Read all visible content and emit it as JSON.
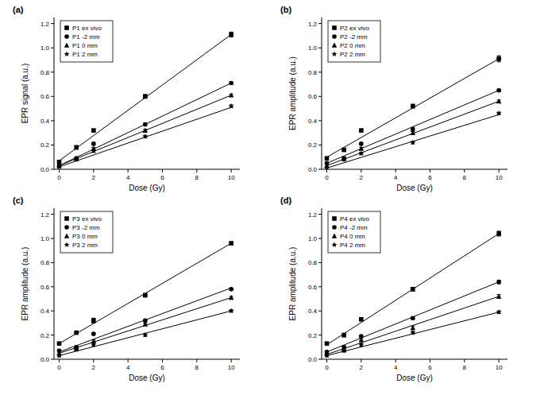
{
  "chart_data": [
    {
      "type": "scatter",
      "title": "(a)",
      "x_label": "Dose (Gy)",
      "y_label": "EPR signal (a.u.)",
      "x": [
        0,
        1,
        2,
        5,
        10
      ],
      "xlim": [
        -0.3,
        10.5
      ],
      "xticks": [
        0,
        2,
        4,
        6,
        8,
        10
      ],
      "ylim": [
        0,
        1.25
      ],
      "yticks": [
        {
          "value": 0,
          "label": "0.0"
        },
        0.2,
        0.4,
        0.6,
        0.8,
        {
          "value": 1,
          "label": "1.0"
        },
        1.2
      ],
      "legend": "upper left",
      "line_style": "solid",
      "color": "#000000",
      "series": [
        {
          "name": "P1 ex vivo",
          "marker": "square",
          "values": [
            0.06,
            0.18,
            0.32,
            0.6,
            1.11
          ],
          "errors": [
            0.01,
            0.015,
            0.01,
            0.015,
            0.02
          ],
          "fit_x": [
            0,
            10
          ],
          "fit": [
            0.07,
            1.11
          ]
        },
        {
          "name": "P1 -2 mm",
          "marker": "circle",
          "values": [
            0.03,
            0.09,
            0.21,
            0.37,
            0.71
          ],
          "errors": [
            0.01,
            0.01,
            0.01,
            0.01,
            0.01
          ],
          "fit_x": [
            0,
            10
          ],
          "fit": [
            0.03,
            0.71
          ]
        },
        {
          "name": "P1 0 mm",
          "marker": "triangle",
          "values": [
            0.03,
            0.09,
            0.17,
            0.32,
            0.61
          ],
          "errors": [
            0.01,
            0.01,
            0.01,
            0.01,
            0.01
          ],
          "fit_x": [
            0,
            10
          ],
          "fit": [
            0.03,
            0.61
          ]
        },
        {
          "name": "P1 2 mm",
          "marker": "star",
          "values": [
            0.02,
            0.08,
            0.15,
            0.27,
            0.52
          ],
          "errors": [
            0.01,
            0.01,
            0.01,
            0.01,
            0.01
          ],
          "fit_x": [
            0,
            10
          ],
          "fit": [
            0.02,
            0.51
          ]
        }
      ]
    },
    {
      "type": "scatter",
      "title": "(b)",
      "x_label": "Dose (Gy)",
      "y_label": "EPR amplitude (a.u.)",
      "x": [
        0,
        1,
        2,
        5,
        10
      ],
      "xlim": [
        -0.3,
        10.5
      ],
      "xticks": [
        0,
        2,
        4,
        6,
        8,
        10
      ],
      "ylim": [
        0,
        1.25
      ],
      "yticks": [
        {
          "value": 0,
          "label": "0.0"
        },
        0.2,
        0.4,
        0.6,
        0.8,
        {
          "value": 1,
          "label": "1.0"
        },
        1.2
      ],
      "legend": "upper left",
      "line_style": "solid",
      "color": "#000000",
      "series": [
        {
          "name": "P2 ex vivo",
          "marker": "square",
          "values": [
            0.09,
            0.16,
            0.32,
            0.52,
            0.91
          ],
          "errors": [
            0.01,
            0.01,
            0.01,
            0.015,
            0.025
          ],
          "fit_x": [
            0,
            10
          ],
          "fit": [
            0.1,
            0.91
          ]
        },
        {
          "name": "P2 -2 mm",
          "marker": "circle",
          "values": [
            0.05,
            0.09,
            0.21,
            0.33,
            0.65
          ],
          "errors": [
            0.01,
            0.01,
            0.01,
            0.015,
            0.01
          ],
          "fit_x": [
            0,
            10
          ],
          "fit": [
            0.05,
            0.65
          ]
        },
        {
          "name": "P2 0 mm",
          "marker": "triangle",
          "values": [
            0.03,
            0.09,
            0.17,
            0.3,
            0.56
          ],
          "errors": [
            0.01,
            0.01,
            0.01,
            0.01,
            0.01
          ],
          "fit_x": [
            0,
            10
          ],
          "fit": [
            0.03,
            0.56
          ]
        },
        {
          "name": "P2 2 mm",
          "marker": "star",
          "values": [
            0.01,
            0.08,
            0.13,
            0.22,
            0.46
          ],
          "errors": [
            0.01,
            0.01,
            0.01,
            0.01,
            0.01
          ],
          "fit_x": [
            0,
            10
          ],
          "fit": [
            0.01,
            0.45
          ]
        }
      ]
    },
    {
      "type": "scatter",
      "title": "(c)",
      "x_label": "Dose (Gy)",
      "y_label": "EPR amplitude (a.u.)",
      "x": [
        0,
        1,
        2,
        5,
        10
      ],
      "xlim": [
        -0.3,
        10.5
      ],
      "xticks": [
        0,
        2,
        4,
        6,
        8,
        10
      ],
      "ylim": [
        0,
        1.25
      ],
      "yticks": [
        {
          "value": 0,
          "label": "0.0"
        },
        0.2,
        0.4,
        0.6,
        0.8,
        {
          "value": 1,
          "label": "1.0"
        },
        1.2
      ],
      "legend": "upper left",
      "line_style": "solid",
      "color": "#000000",
      "series": [
        {
          "name": "P3 ex vivo",
          "marker": "square",
          "values": [
            0.13,
            0.22,
            0.32,
            0.53,
            0.96
          ],
          "errors": [
            0.01,
            0.01,
            0.02,
            0.015,
            0.01
          ],
          "fit_x": [
            0,
            10
          ],
          "fit": [
            0.13,
            0.96
          ]
        },
        {
          "name": "P3 -2 mm",
          "marker": "circle",
          "values": [
            0.07,
            0.1,
            0.21,
            0.32,
            0.58
          ],
          "errors": [
            0.01,
            0.01,
            0.01,
            0.01,
            0.01
          ],
          "fit_x": [
            0,
            10
          ],
          "fit": [
            0.06,
            0.59
          ]
        },
        {
          "name": "P3 0 mm",
          "marker": "triangle",
          "values": [
            0.05,
            0.09,
            0.15,
            0.29,
            0.51
          ],
          "errors": [
            0.01,
            0.01,
            0.01,
            0.01,
            0.01
          ],
          "fit_x": [
            0,
            10
          ],
          "fit": [
            0.05,
            0.51
          ]
        },
        {
          "name": "P3 2 mm",
          "marker": "star",
          "values": [
            0.03,
            0.08,
            0.12,
            0.2,
            0.4
          ],
          "errors": [
            0.01,
            0.01,
            0.01,
            0.01,
            0.01
          ],
          "fit_x": [
            0,
            10
          ],
          "fit": [
            0.03,
            0.4
          ]
        }
      ]
    },
    {
      "type": "scatter",
      "title": "(d)",
      "x_label": "Dose (Gy)",
      "y_label": "EPR amplitude (a.u.)",
      "x": [
        0,
        1,
        2,
        5,
        10
      ],
      "xlim": [
        -0.3,
        10.5
      ],
      "xticks": [
        0,
        2,
        4,
        6,
        8,
        10
      ],
      "ylim": [
        0,
        1.25
      ],
      "yticks": [
        {
          "value": 0,
          "label": "0.0"
        },
        0.2,
        0.4,
        0.6,
        0.8,
        {
          "value": 1,
          "label": "1.0"
        },
        1.2
      ],
      "legend": "upper left",
      "line_style": "solid",
      "color": "#000000",
      "series": [
        {
          "name": "P4 ex vivo",
          "marker": "square",
          "values": [
            0.13,
            0.2,
            0.33,
            0.58,
            1.04
          ],
          "errors": [
            0.01,
            0.015,
            0.01,
            0.015,
            0.02
          ],
          "fit_x": [
            0,
            10
          ],
          "fit": [
            0.12,
            1.04
          ]
        },
        {
          "name": "P4 -2 mm",
          "marker": "circle",
          "values": [
            0.06,
            0.1,
            0.19,
            0.34,
            0.64
          ],
          "errors": [
            0.01,
            0.01,
            0.01,
            0.01,
            0.015
          ],
          "fit_x": [
            0,
            10
          ],
          "fit": [
            0.06,
            0.64
          ]
        },
        {
          "name": "P4 0 mm",
          "marker": "triangle",
          "values": [
            0.05,
            0.08,
            0.16,
            0.26,
            0.52
          ],
          "errors": [
            0.01,
            0.01,
            0.01,
            0.015,
            0.015
          ],
          "fit_x": [
            0,
            10
          ],
          "fit": [
            0.04,
            0.52
          ]
        },
        {
          "name": "P4 2 mm",
          "marker": "star",
          "values": [
            0.03,
            0.07,
            0.12,
            0.22,
            0.39
          ],
          "errors": [
            0.01,
            0.01,
            0.01,
            0.01,
            0.01
          ],
          "fit_x": [
            0,
            10
          ],
          "fit": [
            0.03,
            0.39
          ]
        }
      ]
    }
  ]
}
